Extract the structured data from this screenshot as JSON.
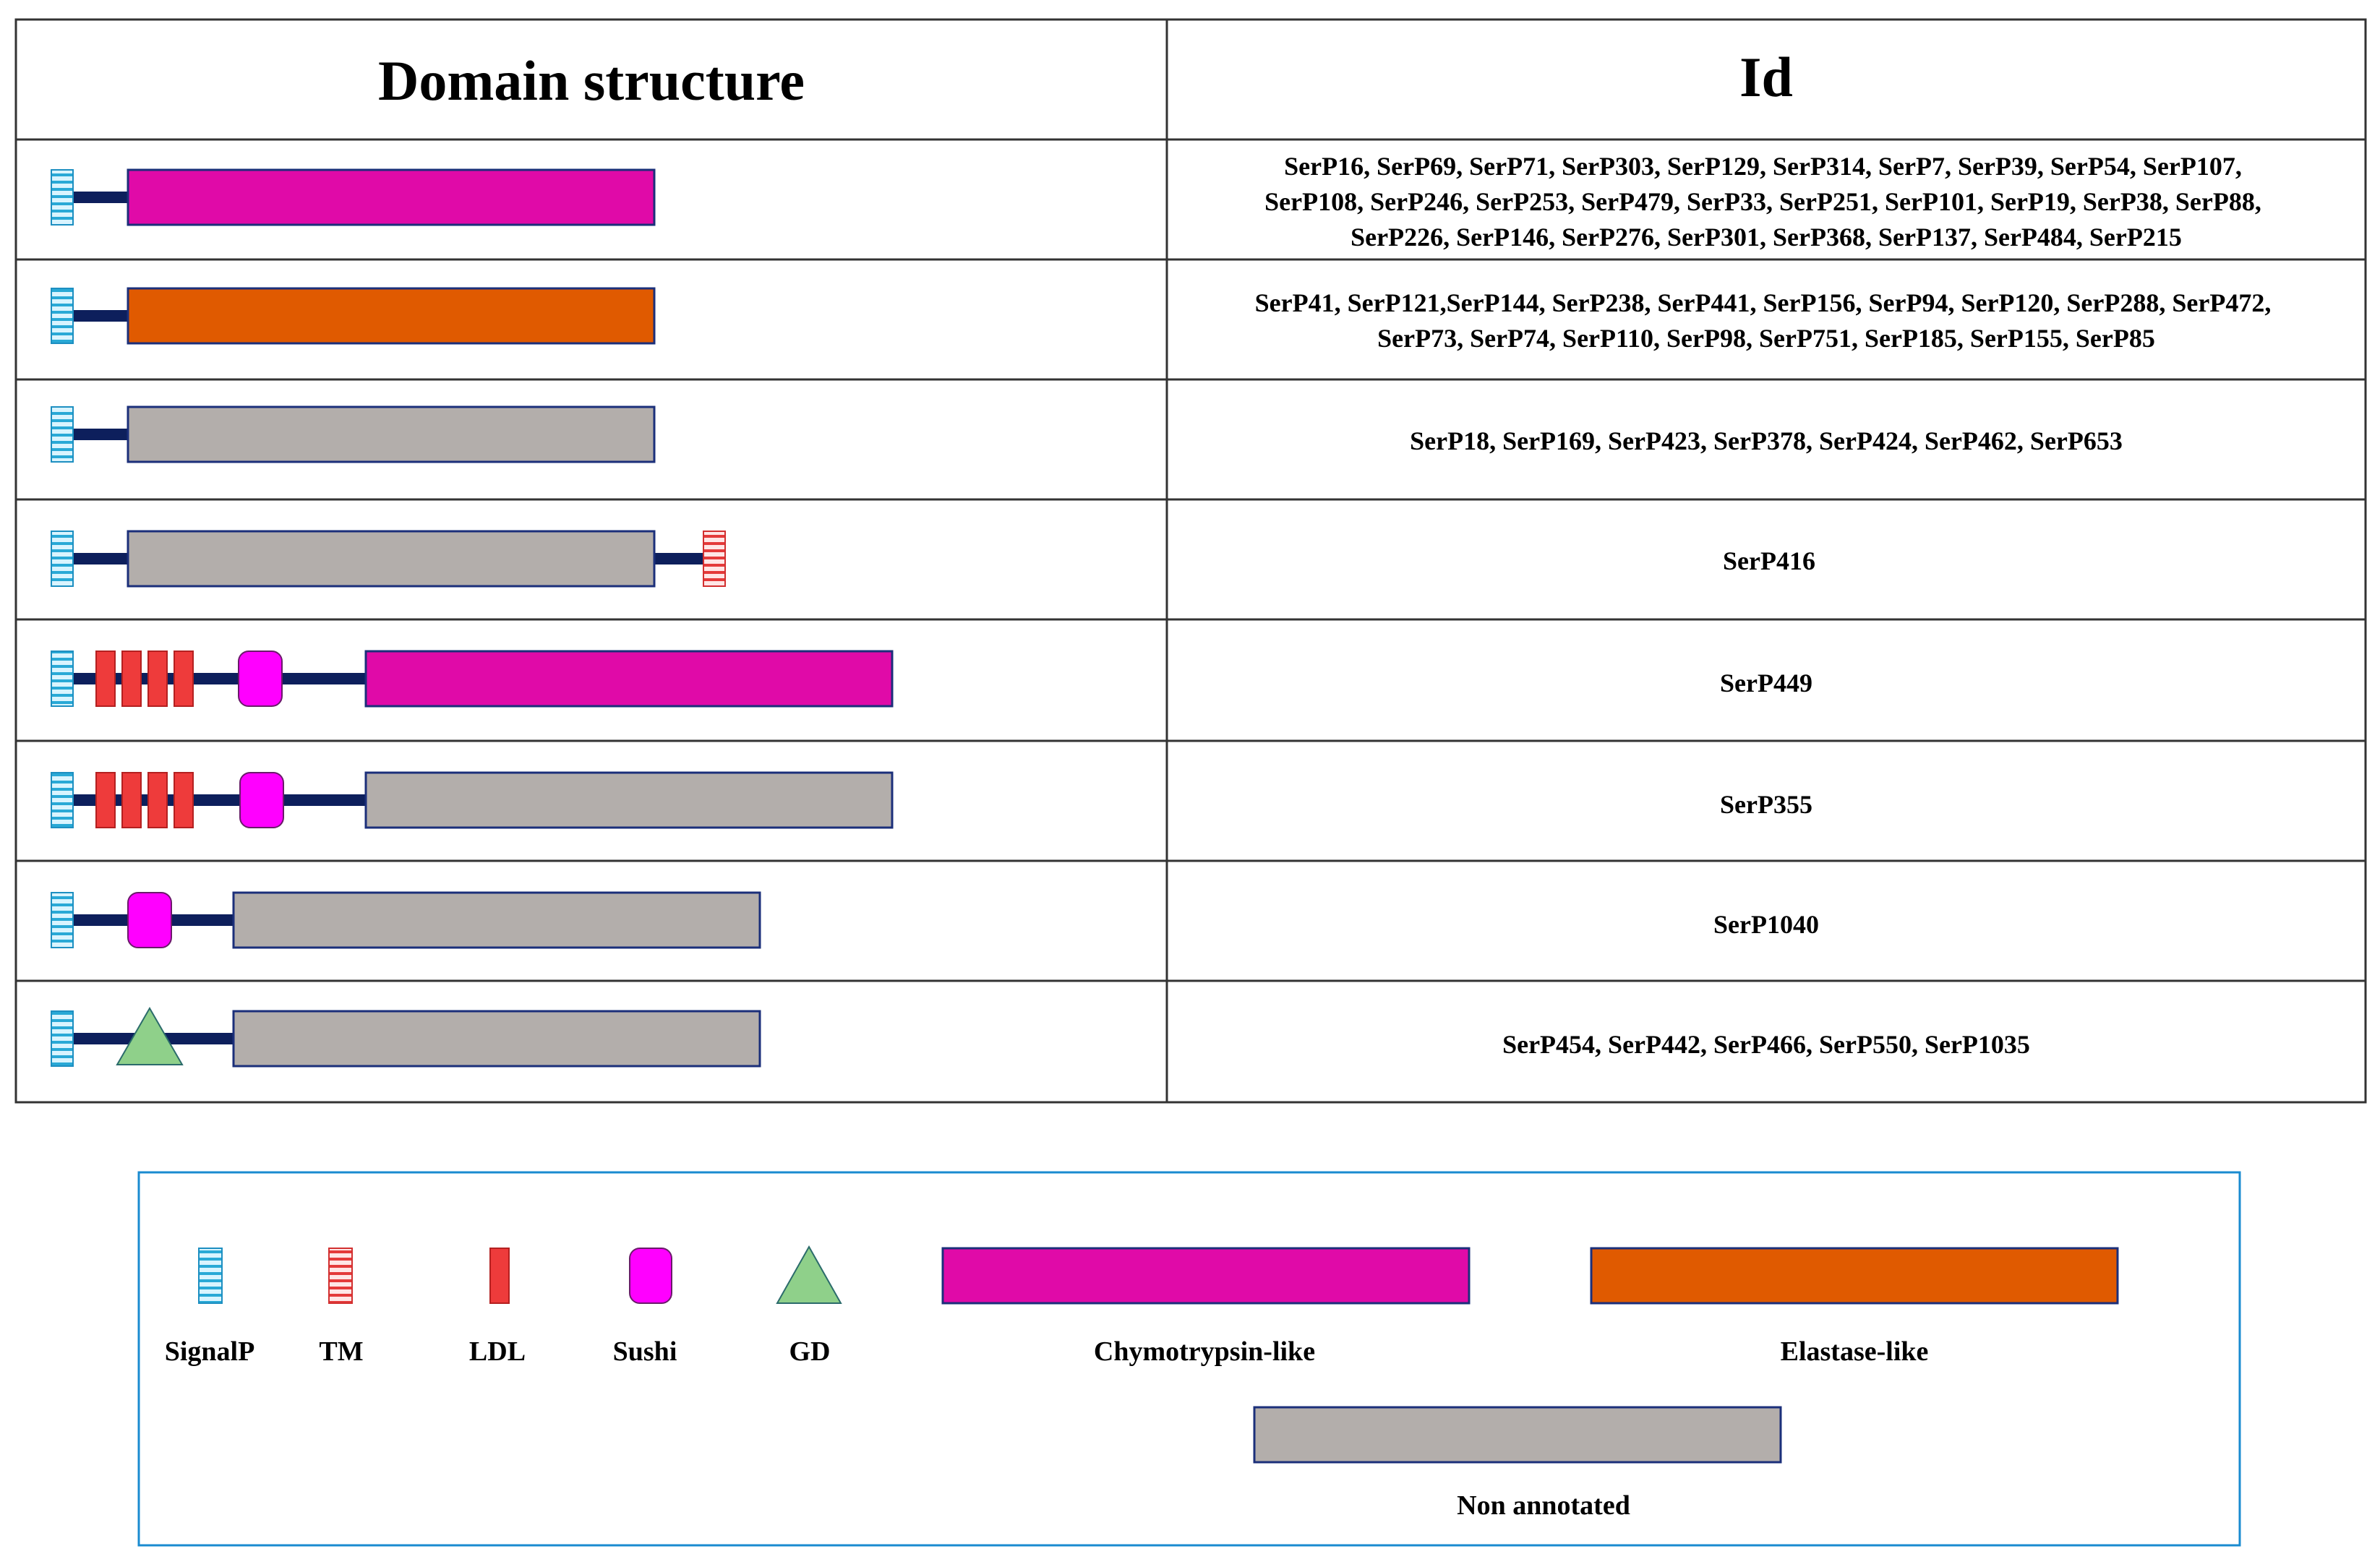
{
  "table": {
    "header_domain": "Domain structure",
    "header_id": "Id"
  },
  "colors": {
    "backbone": "#0d1f5c",
    "signalp_fill": "#d9f4ff",
    "signalp_stripe": "#29a9d6",
    "tm_fill": "#ffe6e6",
    "tm_stripe": "#e43a3a",
    "ldl": "#ee3b3b",
    "sushi": "#ff00ff",
    "gd": "#8fd08a",
    "chymotrypsin": "#e00aa8",
    "elastase": "#e05a00",
    "non_annotated": "#b3aeab",
    "legend_border": "#1a8bd0"
  },
  "rows": [
    {
      "structure": "SignalP-Chymotrypsin-like",
      "id_lines": [
        "SerP16, SerP69, SerP71, SerP303, SerP129, SerP314, SerP7, SerP39, SerP54, SerP107,",
        "SerP108, SerP246, SerP253, SerP479, SerP33, SerP251, SerP101, SerP19, SerP38, SerP88,",
        "SerP226, SerP146, SerP276, SerP301, SerP368, SerP137, SerP484, SerP215"
      ]
    },
    {
      "structure": "SignalP-Elastase-like",
      "id_lines": [
        "SerP41, SerP121,SerP144, SerP238, SerP441, SerP156, SerP94, SerP120, SerP288, SerP472,",
        "SerP73, SerP74, SerP110, SerP98, SerP751, SerP185, SerP155, SerP85"
      ]
    },
    {
      "structure": "SignalP-Non annotated",
      "id_lines": [
        "SerP18, SerP169, SerP423, SerP378, SerP424, SerP462, SerP653"
      ]
    },
    {
      "structure": "SignalP-Non annotated-TM",
      "id_lines": [
        "SerP416"
      ]
    },
    {
      "structure": "SignalP-LDLx4-Sushi-Chymotrypsin-like",
      "id_lines": [
        "SerP449"
      ]
    },
    {
      "structure": "SignalP-LDLx4-Sushi-Non annotated",
      "id_lines": [
        "SerP355"
      ]
    },
    {
      "structure": "SignalP-Sushi-Non annotated",
      "id_lines": [
        "SerP1040"
      ]
    },
    {
      "structure": "SignalP-GD-Non annotated",
      "id_lines": [
        "SerP454, SerP442, SerP466, SerP550, SerP1035"
      ]
    }
  ],
  "legend": {
    "signalp": "SignalP",
    "tm": "TM",
    "ldl": "LDL",
    "sushi": "Sushi",
    "gd": "GD",
    "chymotrypsin": "Chymotrypsin-like",
    "elastase": "Elastase-like",
    "non_annotated": "Non annotated"
  }
}
